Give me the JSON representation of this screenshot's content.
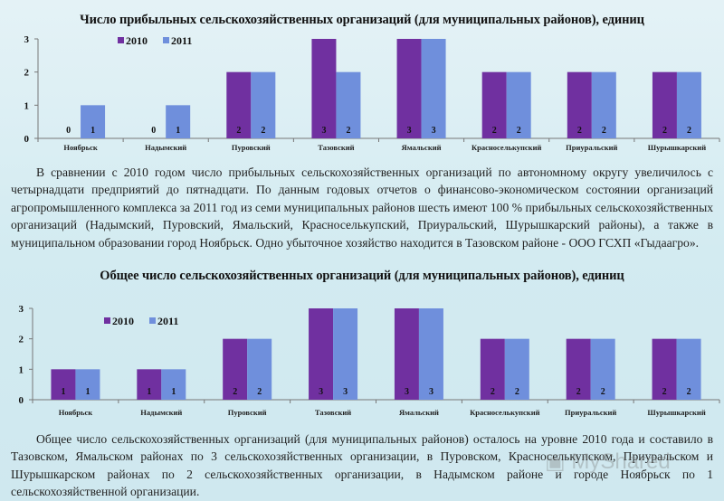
{
  "colors": {
    "2010": "#7030a0",
    "2011": "#6f8fdc"
  },
  "chart_data": [
    {
      "type": "bar",
      "title": "Число прибыльных сельскохозяйственных организаций (для муниципальных районов), единиц",
      "categories": [
        "Ноябрьск",
        "Надымский",
        "Пуровский",
        "Тазовский",
        "Ямальский",
        "Красноселькупский",
        "Приуральский",
        "Шурышкарский"
      ],
      "series": [
        {
          "name": "2010",
          "values": [
            0,
            0,
            2,
            3,
            3,
            2,
            2,
            2
          ]
        },
        {
          "name": "2011",
          "values": [
            1,
            1,
            2,
            2,
            3,
            2,
            2,
            2
          ]
        }
      ],
      "ylim": [
        0,
        3
      ],
      "yticks": [
        "0",
        "1",
        "2",
        "3"
      ],
      "grid": false,
      "legend": "top-left",
      "data_labels": true
    },
    {
      "type": "bar",
      "title": "Общее число сельскохозяйственных организаций (для муниципальных районов), единиц",
      "categories": [
        "Ноябрьск",
        "Надымский",
        "Пуровский",
        "Тазовский",
        "Ямальский",
        "Красноселькупский",
        "Приуральский",
        "Шурышкарский"
      ],
      "series": [
        {
          "name": "2010",
          "values": [
            1,
            1,
            2,
            3,
            3,
            2,
            2,
            2
          ]
        },
        {
          "name": "2011",
          "values": [
            1,
            1,
            2,
            3,
            3,
            2,
            2,
            2
          ]
        }
      ],
      "ylim": [
        0,
        3
      ],
      "yticks": [
        "0",
        "1",
        "2",
        "3"
      ],
      "grid": false,
      "legend": "top-left",
      "data_labels": true
    }
  ],
  "text": {
    "para1": "В сравнении с 2010 годом число прибыльных сельскохозяйственных организаций по автономному округу увеличилось с четырнадцати предприятий до пятнадцати. По данным годовых отчетов о финансово-экономическом состоянии организаций агропромышленного комплекса за 2011 год из семи муниципальных районов шесть имеют 100 % прибыльных сельскохозяйственных организаций (Надымский, Пуровский, Ямальский, Красноселькупский, Приуральский, Шурышкарский районы), а также в муниципальном образовании город Ноябрьск. Одно убыточное хозяйство находится в Тазовском районе - ООО ГСХП «Гыдаагро».",
    "para2": "Общее число сельскохозяйственных организаций (для муниципальных районов) осталось на уровне 2010 года и составило в Тазовском, Ямальском районах по 3 сельскохозяйственных организации, в Пуровском, Красноселькупском, Приуральском и Шурышкарском районах по 2 сельскохозяйственных организации, в Надымском районе и городе Ноябрьск по 1 сельскохозяйственной организации.",
    "watermark": "MyShared"
  }
}
